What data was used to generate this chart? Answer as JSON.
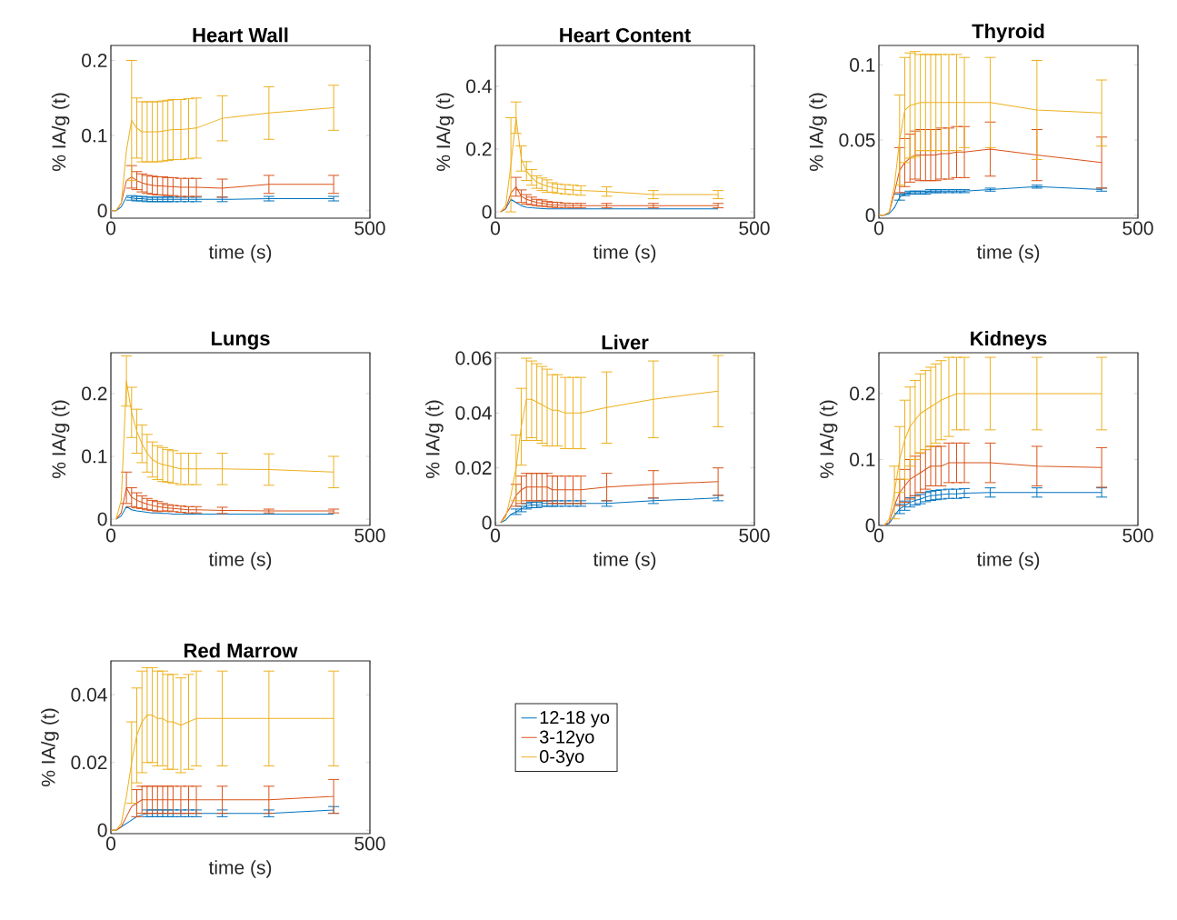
{
  "chart_data": [
    {
      "type": "line",
      "title": "Heart Wall",
      "xlabel": "time (s)",
      "ylabel": "% IA/g (t)",
      "xlim": [
        0,
        500
      ],
      "xticks": [
        0,
        500
      ],
      "ylim": [
        -0.01,
        0.22
      ],
      "yticks": [
        0,
        0.1,
        0.2
      ],
      "grid": false,
      "marker": "none",
      "x": [
        0,
        10,
        20,
        30,
        40,
        50,
        60,
        70,
        80,
        90,
        100,
        110,
        120,
        135,
        150,
        165,
        215,
        305,
        430
      ],
      "series": [
        {
          "color": "#0072bd",
          "values": [
            0,
            0,
            0.005,
            0.018,
            0.017,
            0.016,
            0.016,
            0.015,
            0.015,
            0.015,
            0.015,
            0.015,
            0.015,
            0.015,
            0.015,
            0.015,
            0.015,
            0.016,
            0.016
          ],
          "errors": [
            null,
            null,
            null,
            null,
            0.003,
            0.003,
            0.003,
            0.003,
            0.003,
            0.003,
            0.003,
            0.003,
            0.003,
            0.003,
            0.003,
            0.003,
            0.003,
            0.003,
            0.003
          ]
        },
        {
          "color": "#d95319",
          "values": [
            0,
            0,
            0.01,
            0.04,
            0.045,
            0.04,
            0.037,
            0.035,
            0.034,
            0.033,
            0.033,
            0.032,
            0.032,
            0.031,
            0.031,
            0.031,
            0.03,
            0.035,
            0.035
          ],
          "errors": [
            null,
            null,
            null,
            null,
            0.015,
            0.012,
            0.012,
            0.012,
            0.012,
            0.012,
            0.012,
            0.012,
            0.012,
            0.012,
            0.012,
            0.012,
            0.012,
            0.012,
            0.012
          ]
        },
        {
          "color": "#edb120",
          "values": [
            0,
            0,
            0.01,
            0.08,
            0.12,
            0.11,
            0.105,
            0.105,
            0.105,
            0.105,
            0.106,
            0.107,
            0.108,
            0.108,
            0.109,
            0.11,
            0.123,
            0.13,
            0.137
          ],
          "errors": [
            null,
            null,
            null,
            null,
            0.08,
            0.04,
            0.04,
            0.04,
            0.04,
            0.04,
            0.04,
            0.04,
            0.04,
            0.04,
            0.04,
            0.04,
            0.03,
            0.035,
            0.03
          ]
        }
      ]
    },
    {
      "type": "line",
      "title": "Heart Content",
      "xlabel": "time (s)",
      "ylabel": "% IA/g (t)",
      "xlim": [
        0,
        500
      ],
      "xticks": [
        0,
        500
      ],
      "ylim": [
        -0.02,
        0.53
      ],
      "yticks": [
        0,
        0.2,
        0.4
      ],
      "grid": false,
      "marker": "none",
      "x": [
        10,
        20,
        30,
        40,
        50,
        60,
        70,
        80,
        90,
        100,
        110,
        120,
        135,
        150,
        165,
        215,
        305,
        430
      ],
      "series": [
        {
          "color": "#0072bd",
          "values": [
            0,
            0.01,
            0.04,
            0.03,
            0.02,
            0.015,
            0.013,
            0.012,
            0.011,
            0.01,
            0.01,
            0.01,
            0.01,
            0.01,
            0.01,
            0.01,
            0.01,
            0.01
          ]
        },
        {
          "color": "#d95319",
          "values": [
            0,
            0.01,
            0.06,
            0.08,
            0.05,
            0.04,
            0.035,
            0.03,
            0.028,
            0.025,
            0.023,
            0.022,
            0.021,
            0.02,
            0.02,
            0.02,
            0.02,
            0.02
          ],
          "errors": [
            null,
            null,
            null,
            0.03,
            0.02,
            0.015,
            0.012,
            0.01,
            0.01,
            0.008,
            0.008,
            0.008,
            0.007,
            0.007,
            0.007,
            0.007,
            0.007,
            0.007
          ]
        },
        {
          "color": "#edb120",
          "values": [
            0,
            0.02,
            0.15,
            0.3,
            0.17,
            0.13,
            0.11,
            0.095,
            0.088,
            0.082,
            0.078,
            0.074,
            0.072,
            0.07,
            0.068,
            0.065,
            0.055,
            0.055
          ],
          "errors": [
            null,
            null,
            0.15,
            0.05,
            0.04,
            0.03,
            0.025,
            0.02,
            0.02,
            0.02,
            0.015,
            0.015,
            0.015,
            0.015,
            0.015,
            0.015,
            0.013,
            0.013
          ]
        }
      ]
    },
    {
      "type": "line",
      "title": "Thyroid",
      "xlabel": "time (s)",
      "ylabel": "% IA/g (t)",
      "xlim": [
        0,
        500
      ],
      "xticks": [
        0,
        500
      ],
      "ylim": [
        -0.002,
        0.113
      ],
      "yticks": [
        0,
        0.05,
        0.1
      ],
      "grid": false,
      "marker": "none",
      "x": [
        0,
        10,
        20,
        30,
        40,
        50,
        60,
        70,
        80,
        90,
        100,
        110,
        120,
        135,
        150,
        165,
        215,
        305,
        430
      ],
      "series": [
        {
          "color": "#0072bd",
          "values": [
            0,
            0,
            0.001,
            0.005,
            0.012,
            0.014,
            0.015,
            0.015,
            0.015,
            0.015,
            0.016,
            0.016,
            0.016,
            0.016,
            0.016,
            0.016,
            0.017,
            0.019,
            0.017
          ],
          "errors": [
            null,
            null,
            null,
            null,
            0.002,
            0.001,
            0.001,
            0.001,
            0.001,
            0.001,
            0.001,
            0.001,
            0.001,
            0.001,
            0.001,
            0.001,
            0.001,
            0.001,
            0.001
          ]
        },
        {
          "color": "#d95319",
          "values": [
            0,
            0,
            0.002,
            0.015,
            0.03,
            0.035,
            0.038,
            0.04,
            0.04,
            0.04,
            0.04,
            0.04,
            0.041,
            0.041,
            0.042,
            0.042,
            0.044,
            0.04,
            0.035
          ],
          "errors": [
            null,
            null,
            null,
            null,
            0.015,
            0.016,
            0.016,
            0.016,
            0.017,
            0.017,
            0.017,
            0.017,
            0.017,
            0.017,
            0.017,
            0.017,
            0.018,
            0.017,
            0.017
          ]
        },
        {
          "color": "#edb120",
          "values": [
            0,
            0,
            0.002,
            0.02,
            0.05,
            0.07,
            0.073,
            0.074,
            0.075,
            0.075,
            0.075,
            0.075,
            0.075,
            0.075,
            0.075,
            0.075,
            0.075,
            0.07,
            0.068
          ],
          "errors": [
            null,
            null,
            null,
            null,
            0.03,
            0.035,
            0.035,
            0.035,
            0.032,
            0.032,
            0.032,
            0.032,
            0.032,
            0.032,
            0.032,
            0.03,
            0.03,
            0.033,
            0.022
          ]
        }
      ]
    },
    {
      "type": "line",
      "title": "Lungs",
      "xlabel": "time (s)",
      "ylabel": "% IA/g (t)",
      "xlim": [
        0,
        500
      ],
      "xticks": [
        0,
        500
      ],
      "ylim": [
        -0.01,
        0.265
      ],
      "yticks": [
        0,
        0.1,
        0.2
      ],
      "grid": false,
      "marker": "none",
      "x": [
        10,
        20,
        30,
        40,
        50,
        60,
        70,
        80,
        90,
        100,
        110,
        120,
        135,
        150,
        165,
        215,
        305,
        430
      ],
      "series": [
        {
          "color": "#0072bd",
          "values": [
            0,
            0.005,
            0.02,
            0.015,
            0.013,
            0.012,
            0.011,
            0.01,
            0.01,
            0.009,
            0.009,
            0.008,
            0.008,
            0.008,
            0.008,
            0.008,
            0.008,
            0.008
          ]
        },
        {
          "color": "#d95319",
          "values": [
            0,
            0.01,
            0.05,
            0.035,
            0.03,
            0.027,
            0.024,
            0.022,
            0.02,
            0.019,
            0.018,
            0.017,
            0.016,
            0.015,
            0.015,
            0.014,
            0.013,
            0.013
          ],
          "errors": [
            null,
            null,
            0.025,
            0.015,
            0.012,
            0.01,
            0.009,
            0.008,
            0.008,
            0.006,
            0.005,
            0.005,
            0.005,
            0.005,
            0.005,
            0.005,
            0.003,
            0.003
          ]
        },
        {
          "color": "#edb120",
          "values": [
            0,
            0.03,
            0.22,
            0.17,
            0.14,
            0.12,
            0.105,
            0.095,
            0.09,
            0.087,
            0.085,
            0.083,
            0.08,
            0.08,
            0.08,
            0.08,
            0.079,
            0.075
          ],
          "errors": [
            null,
            null,
            0.04,
            0.04,
            0.035,
            0.03,
            0.03,
            0.028,
            0.027,
            0.027,
            0.026,
            0.026,
            0.025,
            0.025,
            0.025,
            0.025,
            0.025,
            0.025
          ]
        }
      ]
    },
    {
      "type": "line",
      "title": "Liver",
      "xlabel": "time (s)",
      "ylabel": "% IA/g (t)",
      "xlim": [
        0,
        500
      ],
      "xticks": [
        0,
        500
      ],
      "ylim": [
        -0.001,
        0.062
      ],
      "yticks": [
        0,
        0.02,
        0.04,
        0.06
      ],
      "grid": false,
      "marker": "none",
      "x": [
        10,
        20,
        30,
        40,
        50,
        60,
        70,
        80,
        90,
        100,
        110,
        120,
        135,
        150,
        165,
        215,
        305,
        430
      ],
      "series": [
        {
          "color": "#0072bd",
          "values": [
            0,
            0.001,
            0.003,
            0.004,
            0.005,
            0.006,
            0.0065,
            0.0065,
            0.007,
            0.007,
            0.007,
            0.007,
            0.007,
            0.007,
            0.007,
            0.007,
            0.008,
            0.009
          ],
          "errors": [
            null,
            null,
            null,
            0.001,
            0.001,
            0.001,
            0.001,
            0.001,
            0.001,
            0.001,
            0.001,
            0.001,
            0.001,
            0.001,
            0.001,
            0.001,
            0.001,
            0.001
          ]
        },
        {
          "color": "#d95319",
          "values": [
            0,
            0.003,
            0.006,
            0.01,
            0.012,
            0.013,
            0.013,
            0.013,
            0.013,
            0.013,
            0.012,
            0.012,
            0.012,
            0.012,
            0.012,
            0.013,
            0.014,
            0.015
          ],
          "errors": [
            null,
            null,
            null,
            0.004,
            0.005,
            0.005,
            0.005,
            0.005,
            0.005,
            0.005,
            0.005,
            0.005,
            0.005,
            0.005,
            0.005,
            0.005,
            0.005,
            0.005
          ]
        },
        {
          "color": "#edb120",
          "values": [
            0,
            0.002,
            0.01,
            0.02,
            0.035,
            0.045,
            0.045,
            0.044,
            0.043,
            0.042,
            0.041,
            0.041,
            0.04,
            0.04,
            0.04,
            0.042,
            0.045,
            0.048
          ],
          "errors": [
            null,
            null,
            null,
            0.012,
            0.014,
            0.015,
            0.014,
            0.014,
            0.014,
            0.014,
            0.013,
            0.013,
            0.013,
            0.013,
            0.013,
            0.013,
            0.014,
            0.013
          ]
        }
      ]
    },
    {
      "type": "line",
      "title": "Kidneys",
      "xlabel": "time (s)",
      "ylabel": "% IA/g (t)",
      "xlim": [
        0,
        500
      ],
      "xticks": [
        0,
        500
      ],
      "ylim": [
        0,
        0.262
      ],
      "yticks": [
        0,
        0.1,
        0.2
      ],
      "grid": false,
      "marker": "none",
      "x": [
        10,
        20,
        30,
        40,
        50,
        60,
        70,
        80,
        90,
        100,
        110,
        120,
        135,
        150,
        165,
        215,
        305,
        430
      ],
      "series": [
        {
          "color": "#0072bd",
          "values": [
            0,
            0.003,
            0.015,
            0.025,
            0.03,
            0.035,
            0.038,
            0.04,
            0.043,
            0.045,
            0.046,
            0.047,
            0.048,
            0.048,
            0.049,
            0.05,
            0.05,
            0.05
          ],
          "errors": [
            null,
            null,
            null,
            0.007,
            0.007,
            0.007,
            0.007,
            0.007,
            0.007,
            0.007,
            0.007,
            0.007,
            0.007,
            0.007,
            0.007,
            0.007,
            0.007,
            0.007
          ]
        },
        {
          "color": "#d95319",
          "values": [
            0,
            0.005,
            0.03,
            0.05,
            0.06,
            0.07,
            0.075,
            0.08,
            0.085,
            0.09,
            0.09,
            0.09,
            0.095,
            0.095,
            0.095,
            0.095,
            0.09,
            0.088
          ],
          "errors": [
            null,
            null,
            null,
            0.02,
            0.025,
            0.03,
            0.03,
            0.03,
            0.03,
            0.03,
            0.03,
            0.03,
            0.03,
            0.03,
            0.03,
            0.03,
            0.03,
            0.03
          ]
        },
        {
          "color": "#edb120",
          "values": [
            0,
            0.01,
            0.05,
            0.1,
            0.13,
            0.15,
            0.16,
            0.17,
            0.175,
            0.18,
            0.185,
            0.19,
            0.195,
            0.2,
            0.2,
            0.2,
            0.2,
            0.2
          ],
          "errors": [
            null,
            null,
            0.04,
            0.05,
            0.06,
            0.06,
            0.06,
            0.06,
            0.06,
            0.06,
            0.06,
            0.06,
            0.06,
            0.055,
            0.055,
            0.055,
            0.055,
            0.055
          ]
        }
      ]
    },
    {
      "type": "line",
      "title": "Red Marrow",
      "xlabel": "time (s)",
      "ylabel": "% IA/g (t)",
      "xlim": [
        0,
        500
      ],
      "xticks": [
        0,
        500
      ],
      "ylim": [
        -0.001,
        0.05
      ],
      "yticks": [
        0,
        0.02,
        0.04
      ],
      "grid": false,
      "marker": "none",
      "legend": "right",
      "x": [
        0,
        10,
        20,
        30,
        40,
        50,
        60,
        70,
        80,
        90,
        100,
        110,
        120,
        135,
        150,
        165,
        215,
        305,
        430
      ],
      "series": [
        {
          "name": "12-18 yo",
          "color": "#0072bd",
          "values": [
            0,
            0,
            0.001,
            0.002,
            0.003,
            0.004,
            0.0045,
            0.005,
            0.005,
            0.005,
            0.005,
            0.005,
            0.005,
            0.005,
            0.005,
            0.005,
            0.005,
            0.005,
            0.006
          ],
          "errors": [
            null,
            null,
            null,
            null,
            null,
            null,
            null,
            0.001,
            0.001,
            0.001,
            0.001,
            0.001,
            0.001,
            0.001,
            0.001,
            0.001,
            0.001,
            0.001,
            0.001
          ]
        },
        {
          "name": "3-12yo",
          "color": "#d95319",
          "values": [
            0,
            0,
            0.001,
            0.004,
            0.007,
            0.008,
            0.009,
            0.009,
            0.009,
            0.009,
            0.009,
            0.009,
            0.009,
            0.009,
            0.009,
            0.009,
            0.009,
            0.009,
            0.01
          ],
          "errors": [
            null,
            null,
            null,
            null,
            null,
            0.004,
            0.004,
            0.004,
            0.004,
            0.004,
            0.004,
            0.004,
            0.004,
            0.004,
            0.004,
            0.004,
            0.004,
            0.004,
            0.005
          ]
        },
        {
          "name": "0-3yo",
          "color": "#edb120",
          "values": [
            0,
            0,
            0.002,
            0.01,
            0.02,
            0.028,
            0.032,
            0.034,
            0.034,
            0.033,
            0.033,
            0.032,
            0.032,
            0.031,
            0.032,
            0.033,
            0.033,
            0.033,
            0.033
          ],
          "errors": [
            null,
            null,
            null,
            null,
            0.012,
            0.014,
            0.015,
            0.014,
            0.014,
            0.014,
            0.014,
            0.014,
            0.014,
            0.014,
            0.014,
            0.014,
            0.014,
            0.014,
            0.014
          ]
        }
      ]
    }
  ]
}
